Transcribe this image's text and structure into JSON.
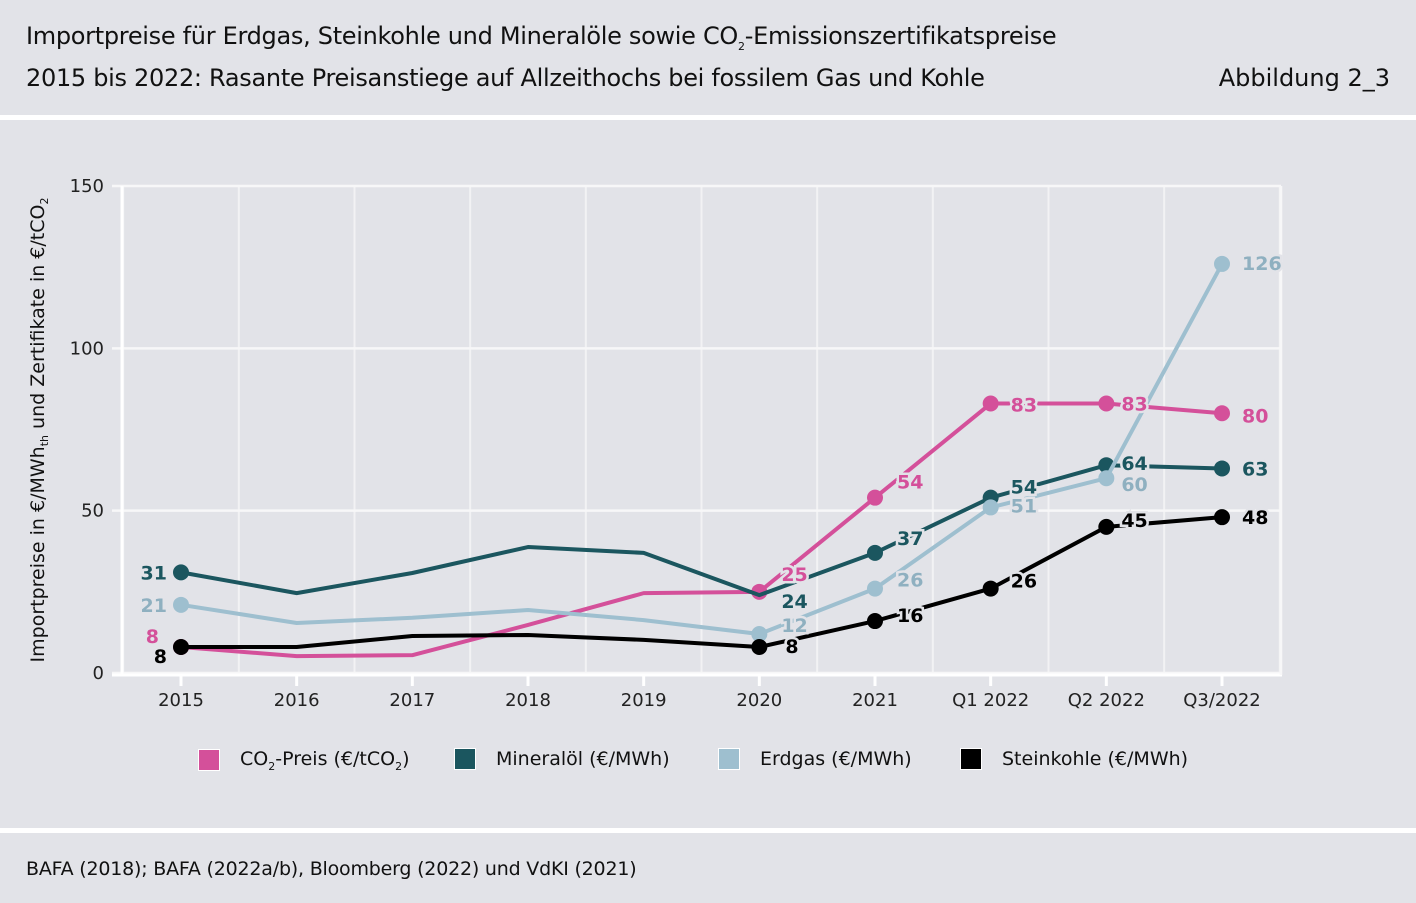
{
  "header": {
    "title_line1_pre": "Importpreise für Erdgas, Steinkohle und Mineralöle sowie CO",
    "title_line1_sub": "2",
    "title_line1_post": "-Emissionszertifikatspreise",
    "title_line2": "2015 bis 2022: Rasante Preisanstiege auf Allzeithochs bei fossilem Gas und Kohle",
    "figure_number": "Abbildung 2_3"
  },
  "source": "BAFA (2018); BAFA (2022a/b), Bloomberg (2022) und VdKI (2021)",
  "chart_data": {
    "type": "line",
    "title": "Importpreise für Erdgas, Steinkohle und Mineralöle sowie CO2-Emissionszertifikatspreise 2015 bis 2022",
    "xlabel": "",
    "ylabel": "Importpreise in €/MWh_th und Zertifikate in €/tCO2",
    "ylabel_parts": {
      "a": "Importpreise in €/MWh",
      "a_sub": "th",
      "b": " und Zertifikate in €/tCO",
      "b_sub": "2"
    },
    "categories": [
      "2015",
      "2016",
      "2017",
      "2018",
      "2019",
      "2020",
      "2021",
      "Q1 2022",
      "Q2 2022",
      "Q3/2022"
    ],
    "ylim": [
      0,
      150
    ],
    "yticks": [
      0,
      50,
      100,
      150
    ],
    "grid": true,
    "legend_position": "bottom",
    "series": [
      {
        "key": "co2",
        "name": "CO2-Preis (€/tCO2)",
        "legend_parts": {
          "a": "CO",
          "a_sub": "2",
          "b": "-Preis (€/tCO",
          "b_sub": "2",
          "c": ")"
        },
        "color": "#d4509a",
        "label_color": "#d4509a",
        "values": [
          8,
          5.2,
          5.5,
          14.8,
          24.6,
          25,
          54,
          83,
          83,
          80
        ],
        "markers": [
          0,
          5,
          6,
          7,
          8,
          9
        ],
        "labels": {
          "0": "8",
          "5": "25",
          "6": "54",
          "7": "83",
          "8": "83",
          "9": "80"
        }
      },
      {
        "key": "oil",
        "name": "Mineralöl (€/MWh)",
        "color": "#1b565f",
        "label_color": "#1b565f",
        "values": [
          31,
          24.6,
          30.8,
          38.8,
          37,
          24,
          37,
          54,
          64,
          63
        ],
        "markers": [
          0,
          6,
          7,
          8,
          9
        ],
        "labels": {
          "0": "31",
          "5": "24",
          "6": "37",
          "7": "54",
          "8": "64",
          "9": "63"
        }
      },
      {
        "key": "gas",
        "name": "Erdgas (€/MWh)",
        "color": "#9ebfcf",
        "label_color": "#8fb0c0",
        "values": [
          21,
          15.4,
          17,
          19.4,
          16.3,
          12,
          26,
          51,
          60,
          126
        ],
        "markers": [
          0,
          5,
          6,
          7,
          8,
          9
        ],
        "labels": {
          "0": "21",
          "5": "12",
          "6": "26",
          "7": "51",
          "8": "60",
          "9": "126"
        }
      },
      {
        "key": "coal",
        "name": "Steinkohle (€/MWh)",
        "color": "#000000",
        "label_color": "#000000",
        "values": [
          8,
          8,
          11.4,
          11.7,
          10.2,
          8,
          16,
          26,
          45,
          48
        ],
        "markers": [
          0,
          5,
          6,
          7,
          8,
          9
        ],
        "labels": {
          "0": "8",
          "5": "8",
          "6": "16",
          "7": "26",
          "8": "45",
          "9": "48"
        }
      }
    ]
  }
}
